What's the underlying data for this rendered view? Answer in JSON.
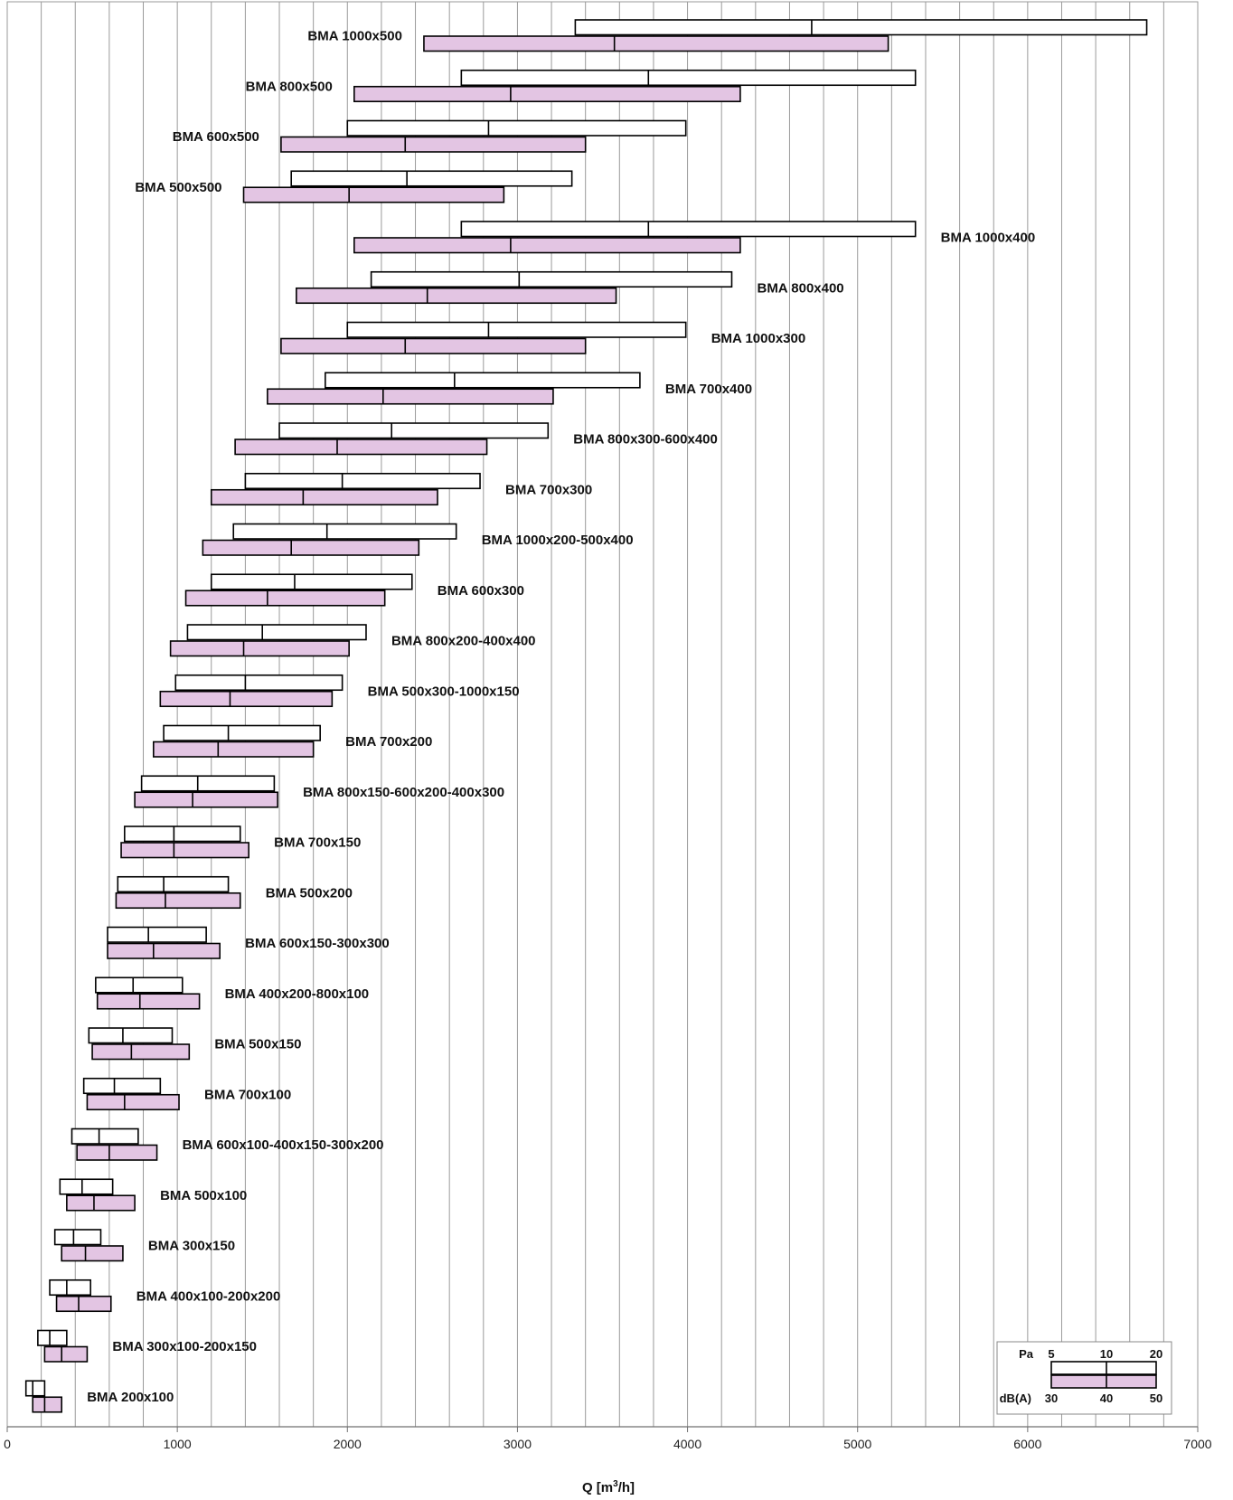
{
  "chart_data": {
    "type": "bar",
    "orientation": "horizontal-range",
    "title": "",
    "xlabel": "Q [m³/h]",
    "xlabel_parts": {
      "pre": "Q [m",
      "sup": "3",
      "post": "/h]"
    },
    "xlim": [
      0,
      7000
    ],
    "xticks": [
      "0",
      "1000",
      "2000",
      "3000",
      "4000",
      "5000",
      "6000",
      "7000"
    ],
    "grid_x_step": 200,
    "colors": {
      "pa": "#ffffff",
      "db": "#e3c5e3",
      "outline": "#000000",
      "grid": "#9a9a9a"
    },
    "legend": {
      "placement": "bottom-right",
      "pa_label": "Pa",
      "pa_ticks": [
        "5",
        "10",
        "20"
      ],
      "db_label": "dB(A)",
      "db_ticks": [
        "30",
        "40",
        "50"
      ]
    },
    "series": [
      {
        "label": "BMA 1000x500",
        "pa": [
          3340,
          4730,
          6700
        ],
        "db": [
          2450,
          3570,
          5180
        ]
      },
      {
        "label": "BMA 800x500",
        "pa": [
          2670,
          3770,
          5340
        ],
        "db": [
          2040,
          2960,
          4310
        ]
      },
      {
        "label": "BMA 600x500",
        "pa": [
          2000,
          2830,
          3990
        ],
        "db": [
          1610,
          2340,
          3400
        ]
      },
      {
        "label": "BMA 500x500",
        "pa": [
          1670,
          2350,
          3320
        ],
        "db": [
          1390,
          2010,
          2920
        ]
      },
      {
        "label": "BMA 1000x400",
        "pa": [
          2670,
          3770,
          5340
        ],
        "db": [
          2040,
          2960,
          4310
        ]
      },
      {
        "label": "BMA 800x400",
        "pa": [
          2140,
          3010,
          4260
        ],
        "db": [
          1700,
          2470,
          3580
        ]
      },
      {
        "label": "BMA 1000x300",
        "pa": [
          2000,
          2830,
          3990
        ],
        "db": [
          1610,
          2340,
          3400
        ]
      },
      {
        "label": "BMA 700x400",
        "pa": [
          1870,
          2630,
          3720
        ],
        "db": [
          1530,
          2210,
          3210
        ]
      },
      {
        "label": "BMA 800x300-600x400",
        "pa": [
          1600,
          2260,
          3180
        ],
        "db": [
          1340,
          1940,
          2820
        ]
      },
      {
        "label": "BMA 700x300",
        "pa": [
          1400,
          1970,
          2780
        ],
        "db": [
          1200,
          1740,
          2530
        ]
      },
      {
        "label": "BMA 1000x200-500x400",
        "pa": [
          1330,
          1880,
          2640
        ],
        "db": [
          1150,
          1670,
          2420
        ]
      },
      {
        "label": "BMA 600x300",
        "pa": [
          1200,
          1690,
          2380
        ],
        "db": [
          1050,
          1530,
          2220
        ]
      },
      {
        "label": "BMA 800x200-400x400",
        "pa": [
          1060,
          1500,
          2110
        ],
        "db": [
          960,
          1390,
          2010
        ]
      },
      {
        "label": "BMA 500x300-1000x150",
        "pa": [
          990,
          1400,
          1970
        ],
        "db": [
          900,
          1310,
          1910
        ]
      },
      {
        "label": "BMA 700x200",
        "pa": [
          920,
          1300,
          1840
        ],
        "db": [
          860,
          1240,
          1800
        ]
      },
      {
        "label": "BMA 800x150-600x200-400x300",
        "pa": [
          790,
          1120,
          1570
        ],
        "db": [
          750,
          1090,
          1590
        ]
      },
      {
        "label": "BMA 700x150",
        "pa": [
          690,
          980,
          1370
        ],
        "db": [
          670,
          980,
          1420
        ]
      },
      {
        "label": "BMA 500x200",
        "pa": [
          650,
          920,
          1300
        ],
        "db": [
          640,
          930,
          1370
        ]
      },
      {
        "label": "BMA 600x150-300x300",
        "pa": [
          590,
          830,
          1170
        ],
        "db": [
          590,
          860,
          1250
        ]
      },
      {
        "label": "BMA 400x200-800x100",
        "pa": [
          520,
          740,
          1030
        ],
        "db": [
          530,
          780,
          1130
        ]
      },
      {
        "label": "BMA 500x150",
        "pa": [
          480,
          680,
          970
        ],
        "db": [
          500,
          730,
          1070
        ]
      },
      {
        "label": "BMA 700x100",
        "pa": [
          450,
          630,
          900
        ],
        "db": [
          470,
          690,
          1010
        ]
      },
      {
        "label": "BMA 600x100-400x150-300x200",
        "pa": [
          380,
          540,
          770
        ],
        "db": [
          410,
          600,
          880
        ]
      },
      {
        "label": "BMA 500x100",
        "pa": [
          310,
          440,
          620
        ],
        "db": [
          350,
          510,
          750
        ]
      },
      {
        "label": "BMA 300x150",
        "pa": [
          280,
          390,
          550
        ],
        "db": [
          320,
          460,
          680
        ]
      },
      {
        "label": "BMA 400x100-200x200",
        "pa": [
          250,
          350,
          490
        ],
        "db": [
          290,
          420,
          610
        ]
      },
      {
        "label": "BMA 300x100-200x150",
        "pa": [
          180,
          250,
          350
        ],
        "db": [
          220,
          320,
          470
        ]
      },
      {
        "label": "BMA 200x100",
        "pa": [
          110,
          150,
          220
        ],
        "db": [
          150,
          220,
          320
        ]
      }
    ]
  }
}
